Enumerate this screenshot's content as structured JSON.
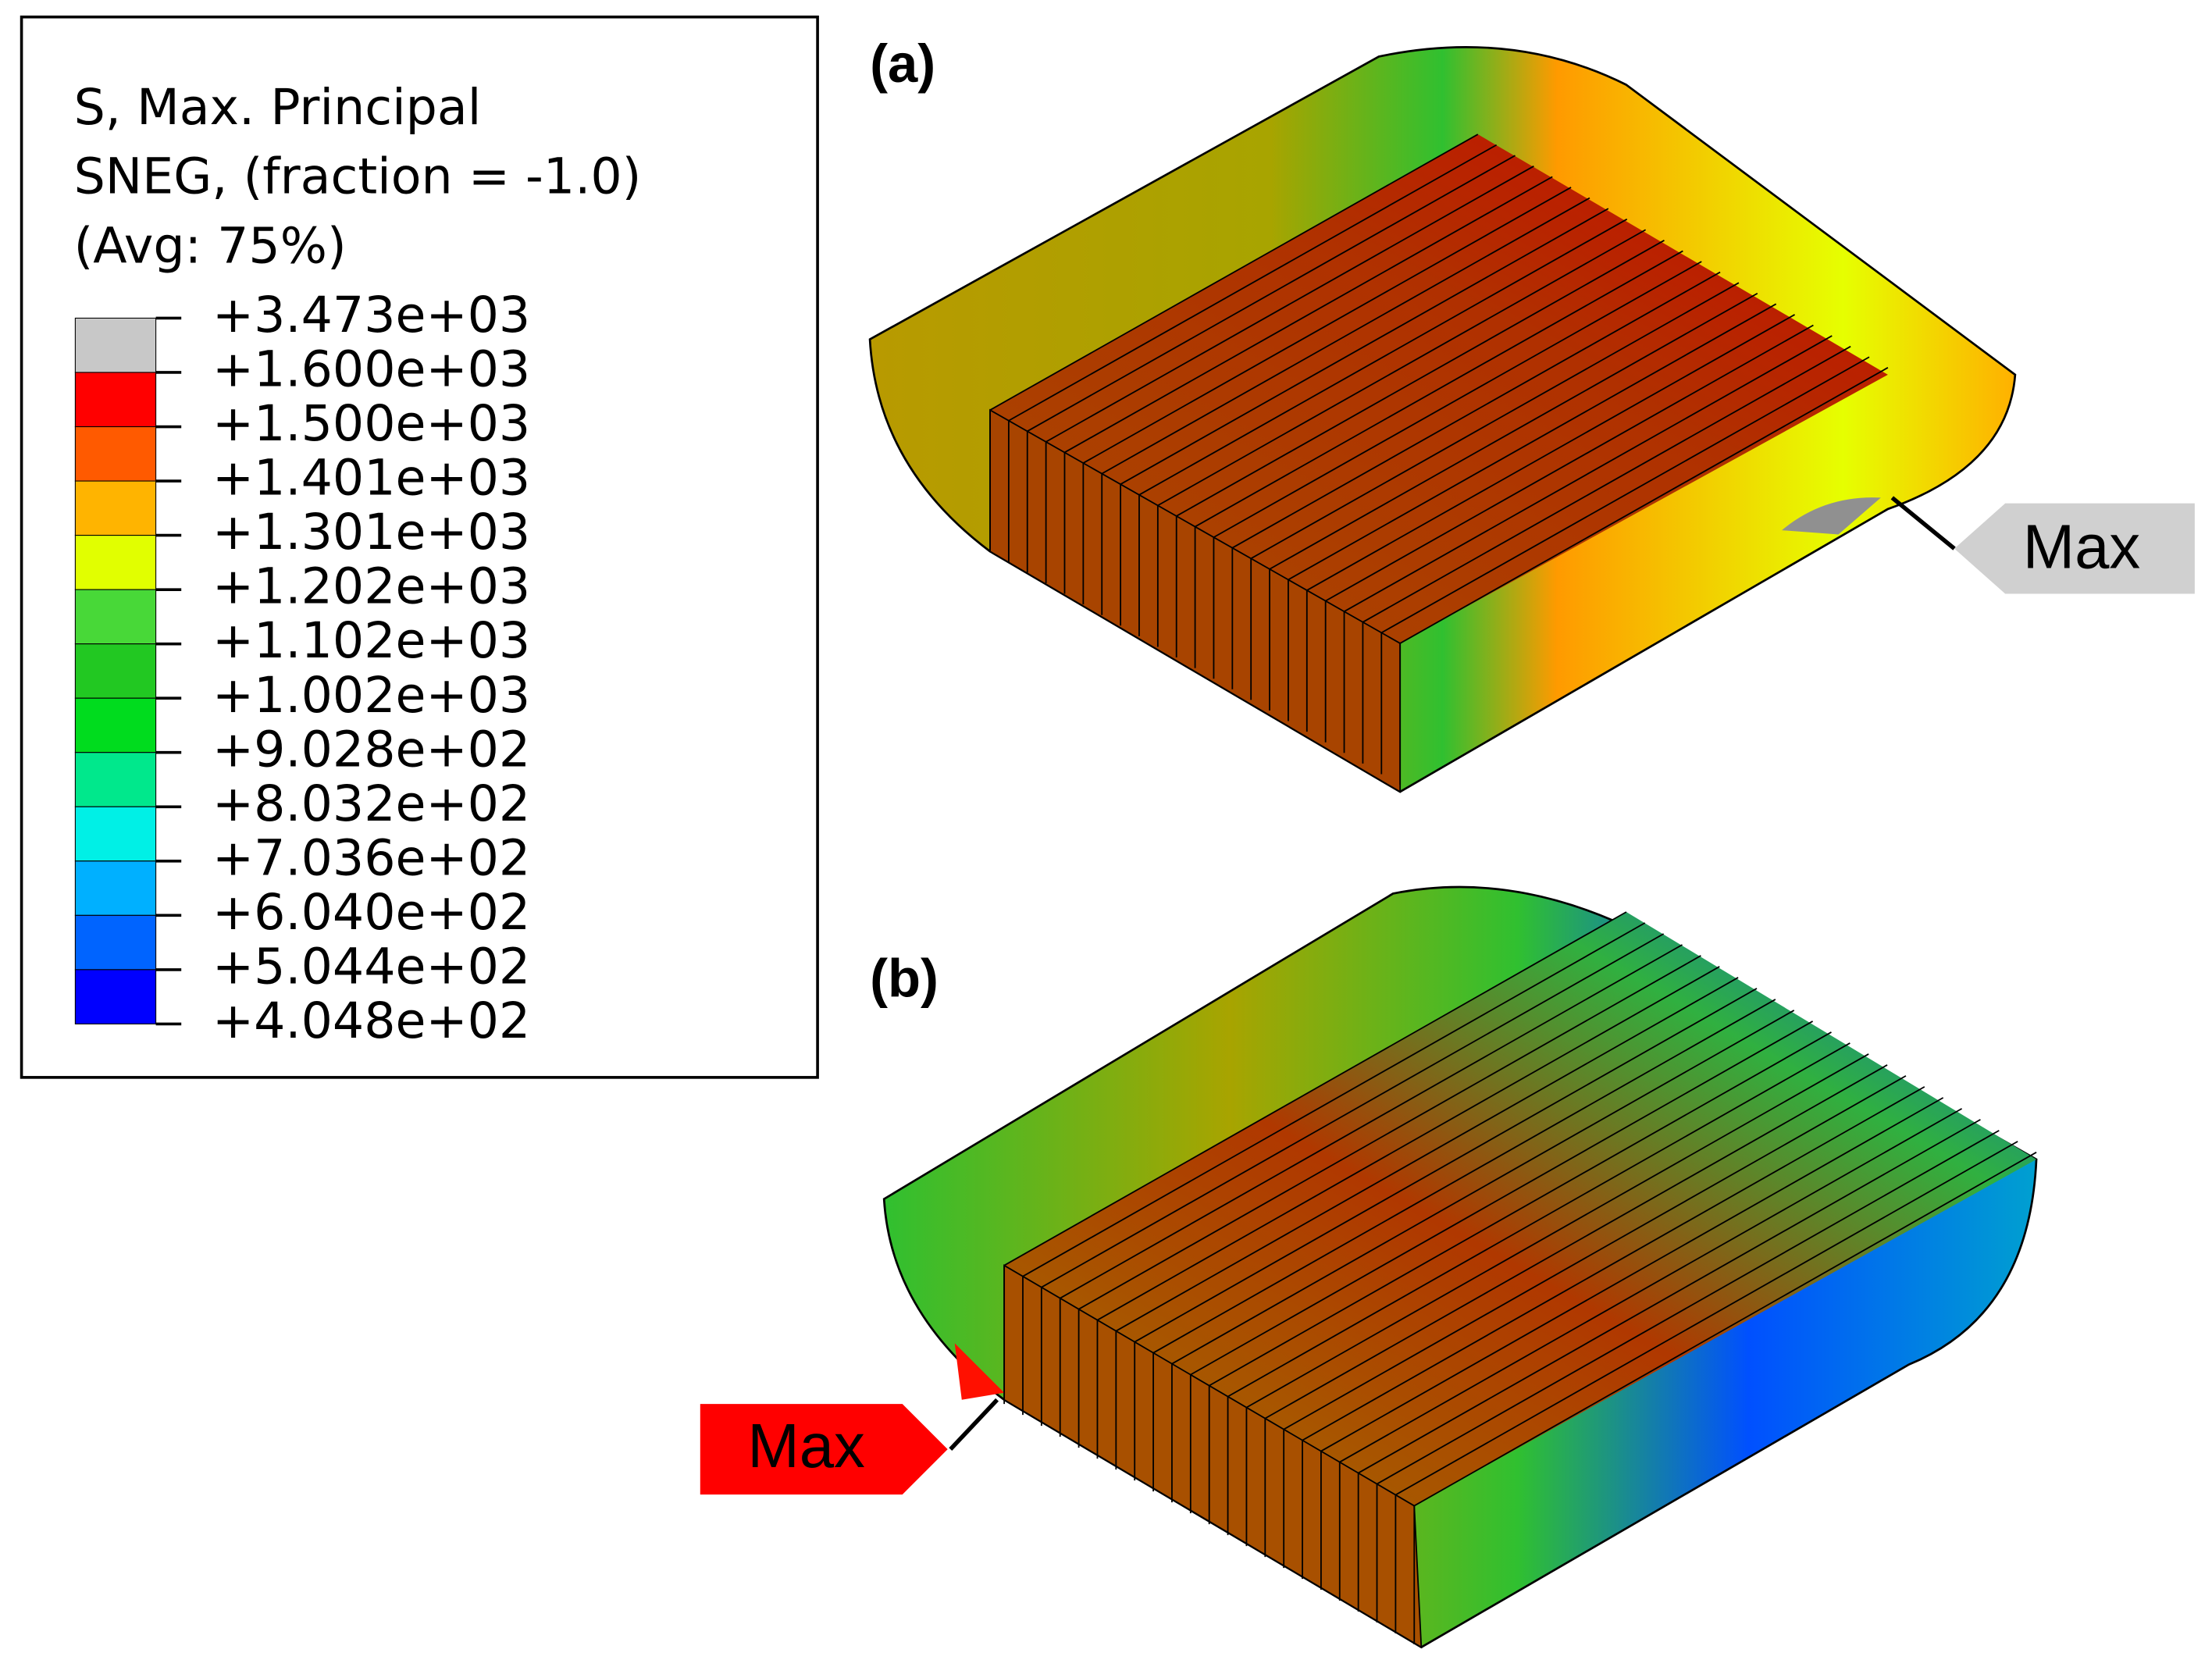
{
  "legend": {
    "title_lines": [
      "S, Max. Principal",
      "SNEG, (fraction = -1.0)",
      "(Avg: 75%)"
    ],
    "levels": [
      "+3.473e+03",
      "+1.600e+03",
      "+1.500e+03",
      "+1.401e+03",
      "+1.301e+03",
      "+1.202e+03",
      "+1.102e+03",
      "+1.002e+03",
      "+9.028e+02",
      "+8.032e+02",
      "+7.036e+02",
      "+6.040e+02",
      "+5.044e+02",
      "+4.048e+02"
    ],
    "colors": [
      "#c8c8c8",
      "#ff0000",
      "#ff5a00",
      "#ffb400",
      "#e1ff00",
      "#48d838",
      "#22c822",
      "#00dc1e",
      "#00e88c",
      "#00f0e6",
      "#00b0ff",
      "#0064ff",
      "#0000ff"
    ]
  },
  "panels": [
    {
      "label": "(a)",
      "annotation": "Max"
    },
    {
      "label": "(b)",
      "annotation": "Max"
    }
  ]
}
